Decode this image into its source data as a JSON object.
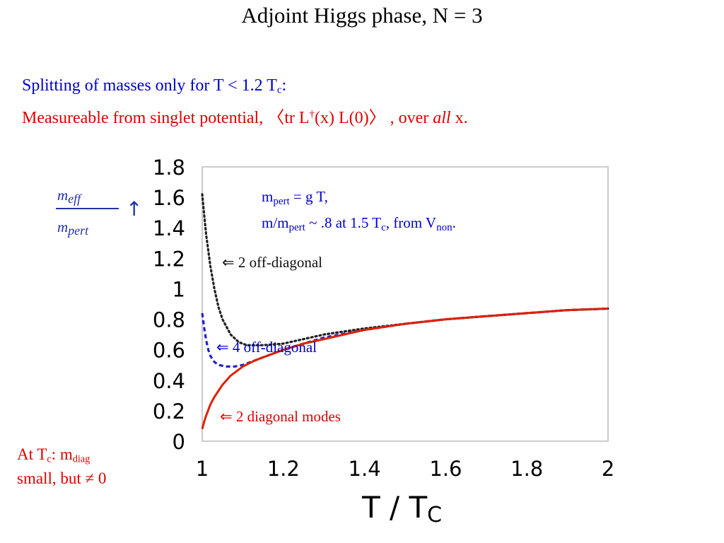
{
  "colors": {
    "title": "#ff0000",
    "accent_blue": "#0000cc",
    "accent_red": "#dd0000"
  },
  "slide": {
    "title": "Adjoint Higgs phase, N = 3",
    "line1": {
      "text": "Splitting of masses only for T < 1.2 T",
      "sub": "c",
      "end": ":"
    },
    "line2": {
      "pre": "Measureable from singlet potential,    〈tr L",
      "sup": "†",
      "post": "(x) L(0)〉 , over ",
      "em": "all",
      "end": " x."
    },
    "note": {
      "l1a": "At T",
      "l1sub": "c",
      "l1b": ": m",
      "l1sub2": "diag",
      "l2": "small, but ≠ 0"
    },
    "ylabel": {
      "num": "m",
      "num_sub": "eff",
      "den": "m",
      "den_sub": "pert",
      "arrow": "↑"
    },
    "xlabel": {
      "text": "T / T",
      "sub": "C"
    },
    "annotations": {
      "mpert": {
        "a": "m",
        "a_sub": "pert",
        "b": " = g T,"
      },
      "ratio": {
        "a": "m/m",
        "a_sub": "pert",
        "b": " ~ .8 at 1.5 T",
        "b_sub": "c",
        "c": ", from V",
        "c_sub": "non",
        "d": "."
      },
      "off2": "⇐ 2 off-diagonal",
      "off4": "⇐ 4 off-diagonal",
      "diag": "⇐ 2 diagonal modes"
    }
  },
  "chart_data": {
    "type": "line",
    "xlabel": "T / TC",
    "ylabel": "meff / mpert",
    "xlim": [
      1,
      2
    ],
    "ylim": [
      0,
      1.8
    ],
    "xticks": [
      "1",
      "1.2",
      "1.4",
      "1.6",
      "1.8",
      "2"
    ],
    "yticks": [
      "0",
      "0.2",
      "0.4",
      "0.6",
      "0.8",
      "1",
      "1.2",
      "1.4",
      "1.6",
      "1.8"
    ],
    "grid": false,
    "series": [
      {
        "name": "2 off-diagonal",
        "color": "#222222",
        "style": "dotted",
        "x": [
          1.0,
          1.005,
          1.01,
          1.02,
          1.03,
          1.04,
          1.05,
          1.07,
          1.09,
          1.11,
          1.13,
          1.15,
          1.2,
          1.3,
          1.4,
          1.5,
          1.6,
          1.7,
          1.8,
          1.9,
          2.0
        ],
        "y": [
          1.62,
          1.48,
          1.35,
          1.15,
          1.0,
          0.88,
          0.8,
          0.7,
          0.65,
          0.63,
          0.63,
          0.63,
          0.64,
          0.7,
          0.74,
          0.77,
          0.8,
          0.82,
          0.84,
          0.86,
          0.87
        ]
      },
      {
        "name": "4 off-diagonal",
        "color": "#2222cc",
        "style": "dashed",
        "x": [
          1.0,
          1.005,
          1.01,
          1.015,
          1.02,
          1.03,
          1.04,
          1.06,
          1.08,
          1.1,
          1.12,
          1.15,
          1.2,
          1.3,
          1.4,
          1.5,
          1.6,
          1.7,
          1.8,
          1.9,
          2.0
        ],
        "y": [
          0.84,
          0.74,
          0.66,
          0.6,
          0.56,
          0.52,
          0.5,
          0.49,
          0.49,
          0.5,
          0.52,
          0.55,
          0.6,
          0.68,
          0.73,
          0.77,
          0.8,
          0.82,
          0.84,
          0.86,
          0.87
        ]
      },
      {
        "name": "2 diagonal modes",
        "color": "#dd2200",
        "style": "solid",
        "x": [
          1.0,
          1.005,
          1.01,
          1.02,
          1.03,
          1.05,
          1.07,
          1.1,
          1.13,
          1.16,
          1.2,
          1.25,
          1.3,
          1.4,
          1.5,
          1.6,
          1.7,
          1.8,
          1.9,
          2.0
        ],
        "y": [
          0.08,
          0.13,
          0.17,
          0.24,
          0.29,
          0.37,
          0.43,
          0.49,
          0.53,
          0.56,
          0.6,
          0.64,
          0.67,
          0.73,
          0.77,
          0.8,
          0.82,
          0.84,
          0.86,
          0.87
        ]
      }
    ]
  }
}
